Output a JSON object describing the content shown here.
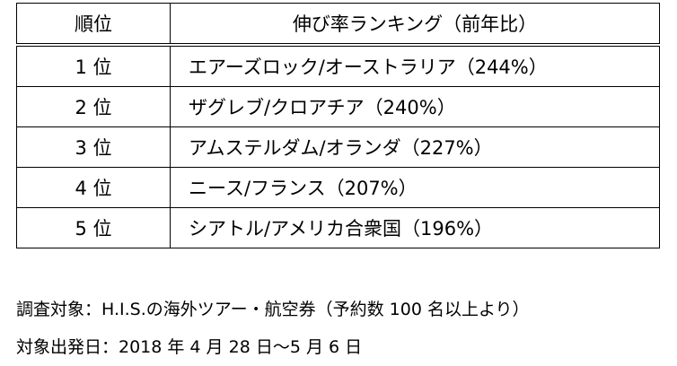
{
  "table": {
    "header": {
      "rank": "順位",
      "destination": "伸び率ランキング（前年比）"
    },
    "rows": [
      {
        "rank": "1 位",
        "destination": "エアーズロック/オーストラリア（244%）"
      },
      {
        "rank": "2 位",
        "destination": "ザグレブ/クロアチア（240%）"
      },
      {
        "rank": "3 位",
        "destination": "アムステルダム/オランダ（227%）"
      },
      {
        "rank": "4 位",
        "destination": "ニース/フランス（207%）"
      },
      {
        "rank": "5 位",
        "destination": "シアトル/アメリカ合衆国（196%）"
      }
    ]
  },
  "notes": {
    "survey": "調査対象：H.I.S.の海外ツアー・航空券（予約数 100 名以上より）",
    "period": "対象出発日：2018 年 4 月 28 日～5 月 6 日"
  }
}
